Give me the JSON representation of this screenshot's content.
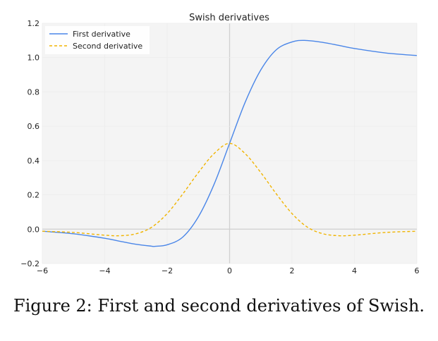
{
  "chart_data": {
    "type": "line",
    "title": "Swish derivatives",
    "xlabel": "",
    "ylabel": "",
    "xlim": [
      -6,
      6
    ],
    "ylim": [
      -0.2,
      1.2
    ],
    "x_ticks": [
      "−6",
      "−4",
      "−2",
      "0",
      "2",
      "4",
      "6"
    ],
    "y_ticks": [
      "−0.2",
      "0.0",
      "0.2",
      "0.4",
      "0.6",
      "0.8",
      "1.0",
      "1.2"
    ],
    "grid": true,
    "legend_position": "top-left",
    "series": [
      {
        "name": "First derivative",
        "color": "#4a86e8",
        "style": "solid",
        "x": [
          -6,
          -5,
          -4,
          -3.5,
          -3,
          -2.5,
          -2.4,
          -2,
          -1.5,
          -1,
          -0.5,
          0,
          0.5,
          1,
          1.5,
          2,
          2.4,
          3,
          3.5,
          4,
          5,
          6
        ],
        "y": [
          -0.012,
          -0.027,
          -0.053,
          -0.071,
          -0.088,
          -0.099,
          -0.1,
          -0.091,
          -0.046,
          0.072,
          0.26,
          0.5,
          0.74,
          0.928,
          1.046,
          1.091,
          1.1,
          1.088,
          1.071,
          1.053,
          1.027,
          1.012
        ]
      },
      {
        "name": "Second derivative",
        "color": "#f0b400",
        "style": "dashed",
        "x": [
          -6,
          -5,
          -4,
          -3.5,
          -3,
          -2.5,
          -2,
          -1.5,
          -1,
          -0.5,
          0,
          0.5,
          1,
          1.5,
          2,
          2.5,
          3,
          3.5,
          4,
          5,
          6
        ],
        "y": [
          -0.012,
          -0.019,
          -0.035,
          -0.038,
          -0.027,
          0.011,
          0.091,
          0.205,
          0.33,
          0.44,
          0.5,
          0.44,
          0.33,
          0.205,
          0.091,
          0.011,
          -0.027,
          -0.038,
          -0.035,
          -0.019,
          -0.012
        ]
      }
    ]
  },
  "caption": "Figure 2: First and second derivatives of Swish."
}
